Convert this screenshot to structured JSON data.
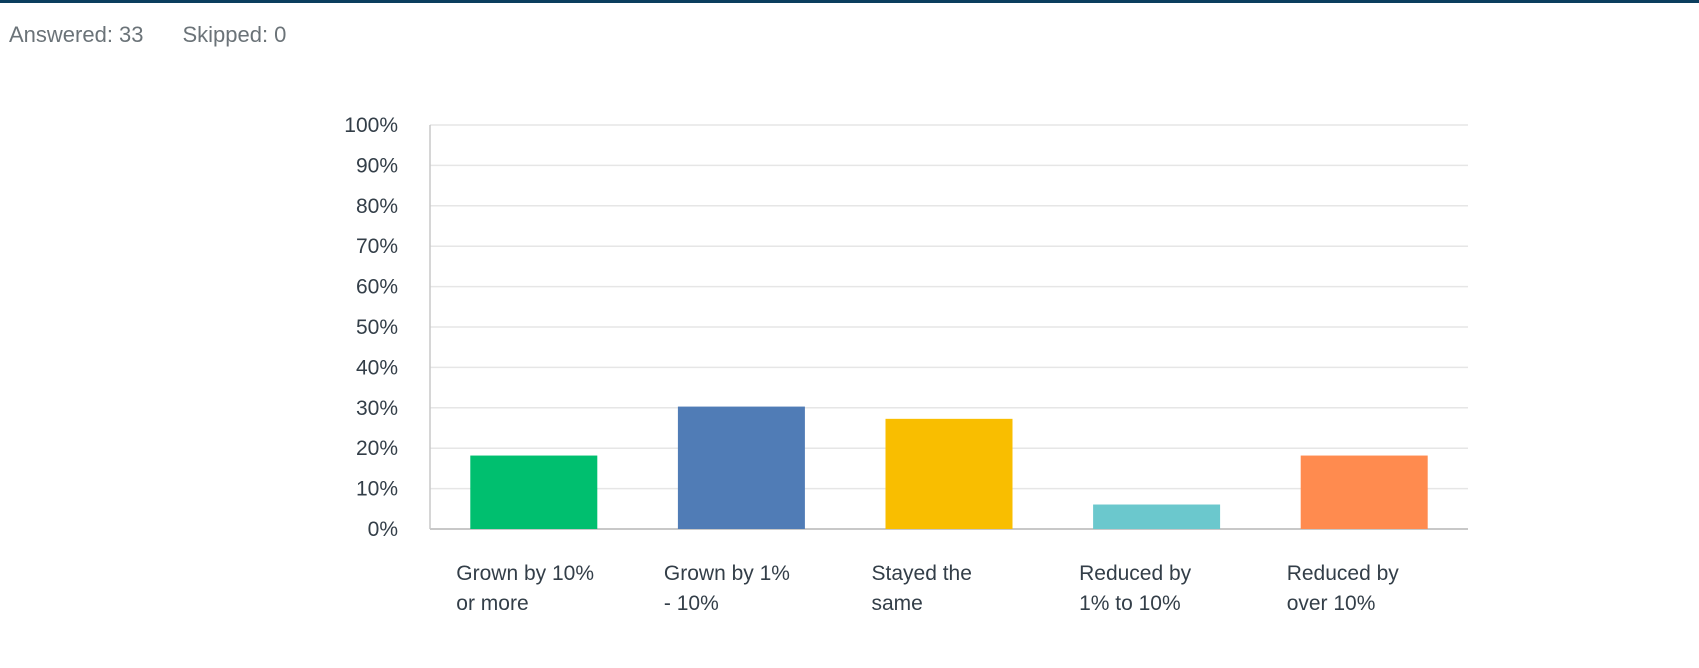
{
  "summary": {
    "answered_label": "Answered:",
    "answered_value": "33",
    "skipped_label": "Skipped:",
    "skipped_value": "0"
  },
  "colors": {
    "top_rule": "#0b3e5e",
    "gridline": "#e6e6e6",
    "axis": "#c8c8c8",
    "text": "#333e48",
    "muted_text": "#6b7378"
  },
  "chart_data": {
    "type": "bar",
    "categories": [
      [
        "Grown by 10%",
        "or more"
      ],
      [
        "Grown by 1%",
        "- 10%"
      ],
      [
        "Stayed the",
        "same"
      ],
      [
        "Reduced by",
        "1% to 10%"
      ],
      [
        "Reduced by",
        "over 10%"
      ]
    ],
    "values": [
      18.18,
      30.3,
      27.27,
      6.06,
      18.18
    ],
    "bar_colors": [
      "#00bf6f",
      "#507cb6",
      "#f9be00",
      "#6bc8cd",
      "#ff8b4f"
    ],
    "ylim": [
      0,
      100
    ],
    "yticks": [
      0,
      10,
      20,
      30,
      40,
      50,
      60,
      70,
      80,
      90,
      100
    ],
    "tick_suffix": "%",
    "grid": true,
    "title": "",
    "xlabel": "",
    "ylabel": ""
  }
}
